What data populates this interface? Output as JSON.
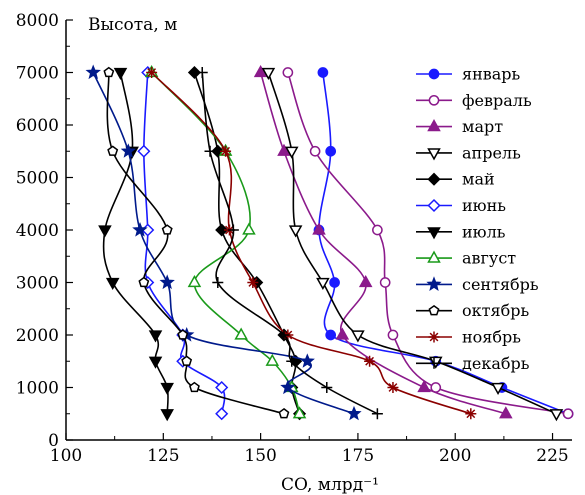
{
  "chart_data": {
    "type": "line",
    "title": "",
    "xlabel": "CO, млрд⁻¹",
    "ylabel": "Высота, м",
    "xlim": [
      100,
      230
    ],
    "ylim": [
      0,
      8000
    ],
    "xticks": [
      100,
      125,
      150,
      175,
      200,
      225
    ],
    "yticks": [
      0,
      1000,
      2000,
      3000,
      4000,
      5000,
      6000,
      7000,
      8000
    ],
    "legend_position": "right",
    "series": [
      {
        "name": "январь",
        "color": "#1a1aff",
        "marker": "circle",
        "filled": true,
        "points": [
          [
            229,
            500
          ],
          [
            212,
            1000
          ],
          [
            195,
            1500
          ],
          [
            168,
            2000
          ],
          [
            169,
            3000
          ],
          [
            165,
            4000
          ],
          [
            168,
            5500
          ],
          [
            166,
            7000
          ]
        ]
      },
      {
        "name": "февраль",
        "color": "#8b1a8b",
        "marker": "circle",
        "filled": false,
        "points": [
          [
            229,
            500
          ],
          [
            195,
            1000
          ],
          [
            184,
            2000
          ],
          [
            182,
            3000
          ],
          [
            180,
            4000
          ],
          [
            164,
            5500
          ],
          [
            157,
            7000
          ]
        ]
      },
      {
        "name": "март",
        "color": "#8b1a8b",
        "marker": "triangle",
        "filled": true,
        "points": [
          [
            213,
            500
          ],
          [
            192,
            1000
          ],
          [
            171,
            2000
          ],
          [
            177,
            3000
          ],
          [
            165,
            4000
          ],
          [
            156,
            5500
          ],
          [
            150,
            7000
          ]
        ]
      },
      {
        "name": "апрель",
        "color": "#000000",
        "marker": "triangle-down",
        "filled": false,
        "points": [
          [
            226,
            500
          ],
          [
            211,
            1000
          ],
          [
            195,
            1500
          ],
          [
            175,
            2000
          ],
          [
            166,
            3000
          ],
          [
            159,
            4000
          ],
          [
            158,
            5500
          ],
          [
            152,
            7000
          ]
        ]
      },
      {
        "name": "май",
        "color": "#000000",
        "marker": "diamond",
        "filled": true,
        "points": [
          [
            160,
            500
          ],
          [
            158,
            1000
          ],
          [
            159,
            1500
          ],
          [
            156,
            2000
          ],
          [
            149,
            3000
          ],
          [
            140,
            4000
          ],
          [
            139,
            5500
          ],
          [
            133,
            7000
          ]
        ]
      },
      {
        "name": "июнь",
        "color": "#1a1aff",
        "marker": "diamond",
        "filled": false,
        "points": [
          [
            140,
            500
          ],
          [
            140,
            1000
          ],
          [
            130,
            1500
          ],
          [
            130,
            2000
          ],
          [
            121,
            3000
          ],
          [
            121,
            4000
          ],
          [
            120,
            5500
          ],
          [
            121,
            7000
          ]
        ]
      },
      {
        "name": "июль",
        "color": "#000000",
        "marker": "triangle-down",
        "filled": true,
        "points": [
          [
            126,
            500
          ],
          [
            126,
            1000
          ],
          [
            123,
            1500
          ],
          [
            123,
            2000
          ],
          [
            112,
            3000
          ],
          [
            110,
            4000
          ],
          [
            117,
            5500
          ],
          [
            114,
            7000
          ]
        ]
      },
      {
        "name": "август",
        "color": "#1a9a1a",
        "marker": "triangle",
        "filled": false,
        "points": [
          [
            160,
            500
          ],
          [
            158,
            1000
          ],
          [
            153,
            1500
          ],
          [
            145,
            2000
          ],
          [
            133,
            3000
          ],
          [
            147,
            4000
          ],
          [
            141,
            5500
          ],
          [
            122,
            7000
          ]
        ]
      },
      {
        "name": "сентябрь",
        "color": "#001a8b",
        "marker": "star",
        "filled": true,
        "points": [
          [
            174,
            500
          ],
          [
            157,
            1000
          ],
          [
            162,
            1500
          ],
          [
            131,
            2000
          ],
          [
            126,
            3000
          ],
          [
            119,
            4000
          ],
          [
            116,
            5500
          ],
          [
            107,
            7000
          ]
        ]
      },
      {
        "name": "октябрь",
        "color": "#000000",
        "marker": "pentagon",
        "filled": false,
        "points": [
          [
            156,
            500
          ],
          [
            133,
            1000
          ],
          [
            131,
            1500
          ],
          [
            130,
            2000
          ],
          [
            120,
            3000
          ],
          [
            126,
            4000
          ],
          [
            112,
            5500
          ],
          [
            111,
            7000
          ]
        ]
      },
      {
        "name": "ноябрь",
        "color": "#8b0000",
        "marker": "asterisk",
        "filled": false,
        "points": [
          [
            204,
            500
          ],
          [
            184,
            1000
          ],
          [
            178,
            1500
          ],
          [
            157,
            2000
          ],
          [
            148,
            3000
          ],
          [
            142,
            4000
          ],
          [
            141,
            5500
          ],
          [
            122,
            7000
          ]
        ]
      },
      {
        "name": "декабрь",
        "color": "#000000",
        "marker": "plus",
        "filled": false,
        "points": [
          [
            180,
            500
          ],
          [
            167,
            1000
          ],
          [
            158,
            1500
          ],
          [
            156,
            2000
          ],
          [
            139,
            3000
          ],
          [
            143,
            4000
          ],
          [
            137,
            5500
          ],
          [
            135,
            7000
          ]
        ]
      }
    ]
  }
}
